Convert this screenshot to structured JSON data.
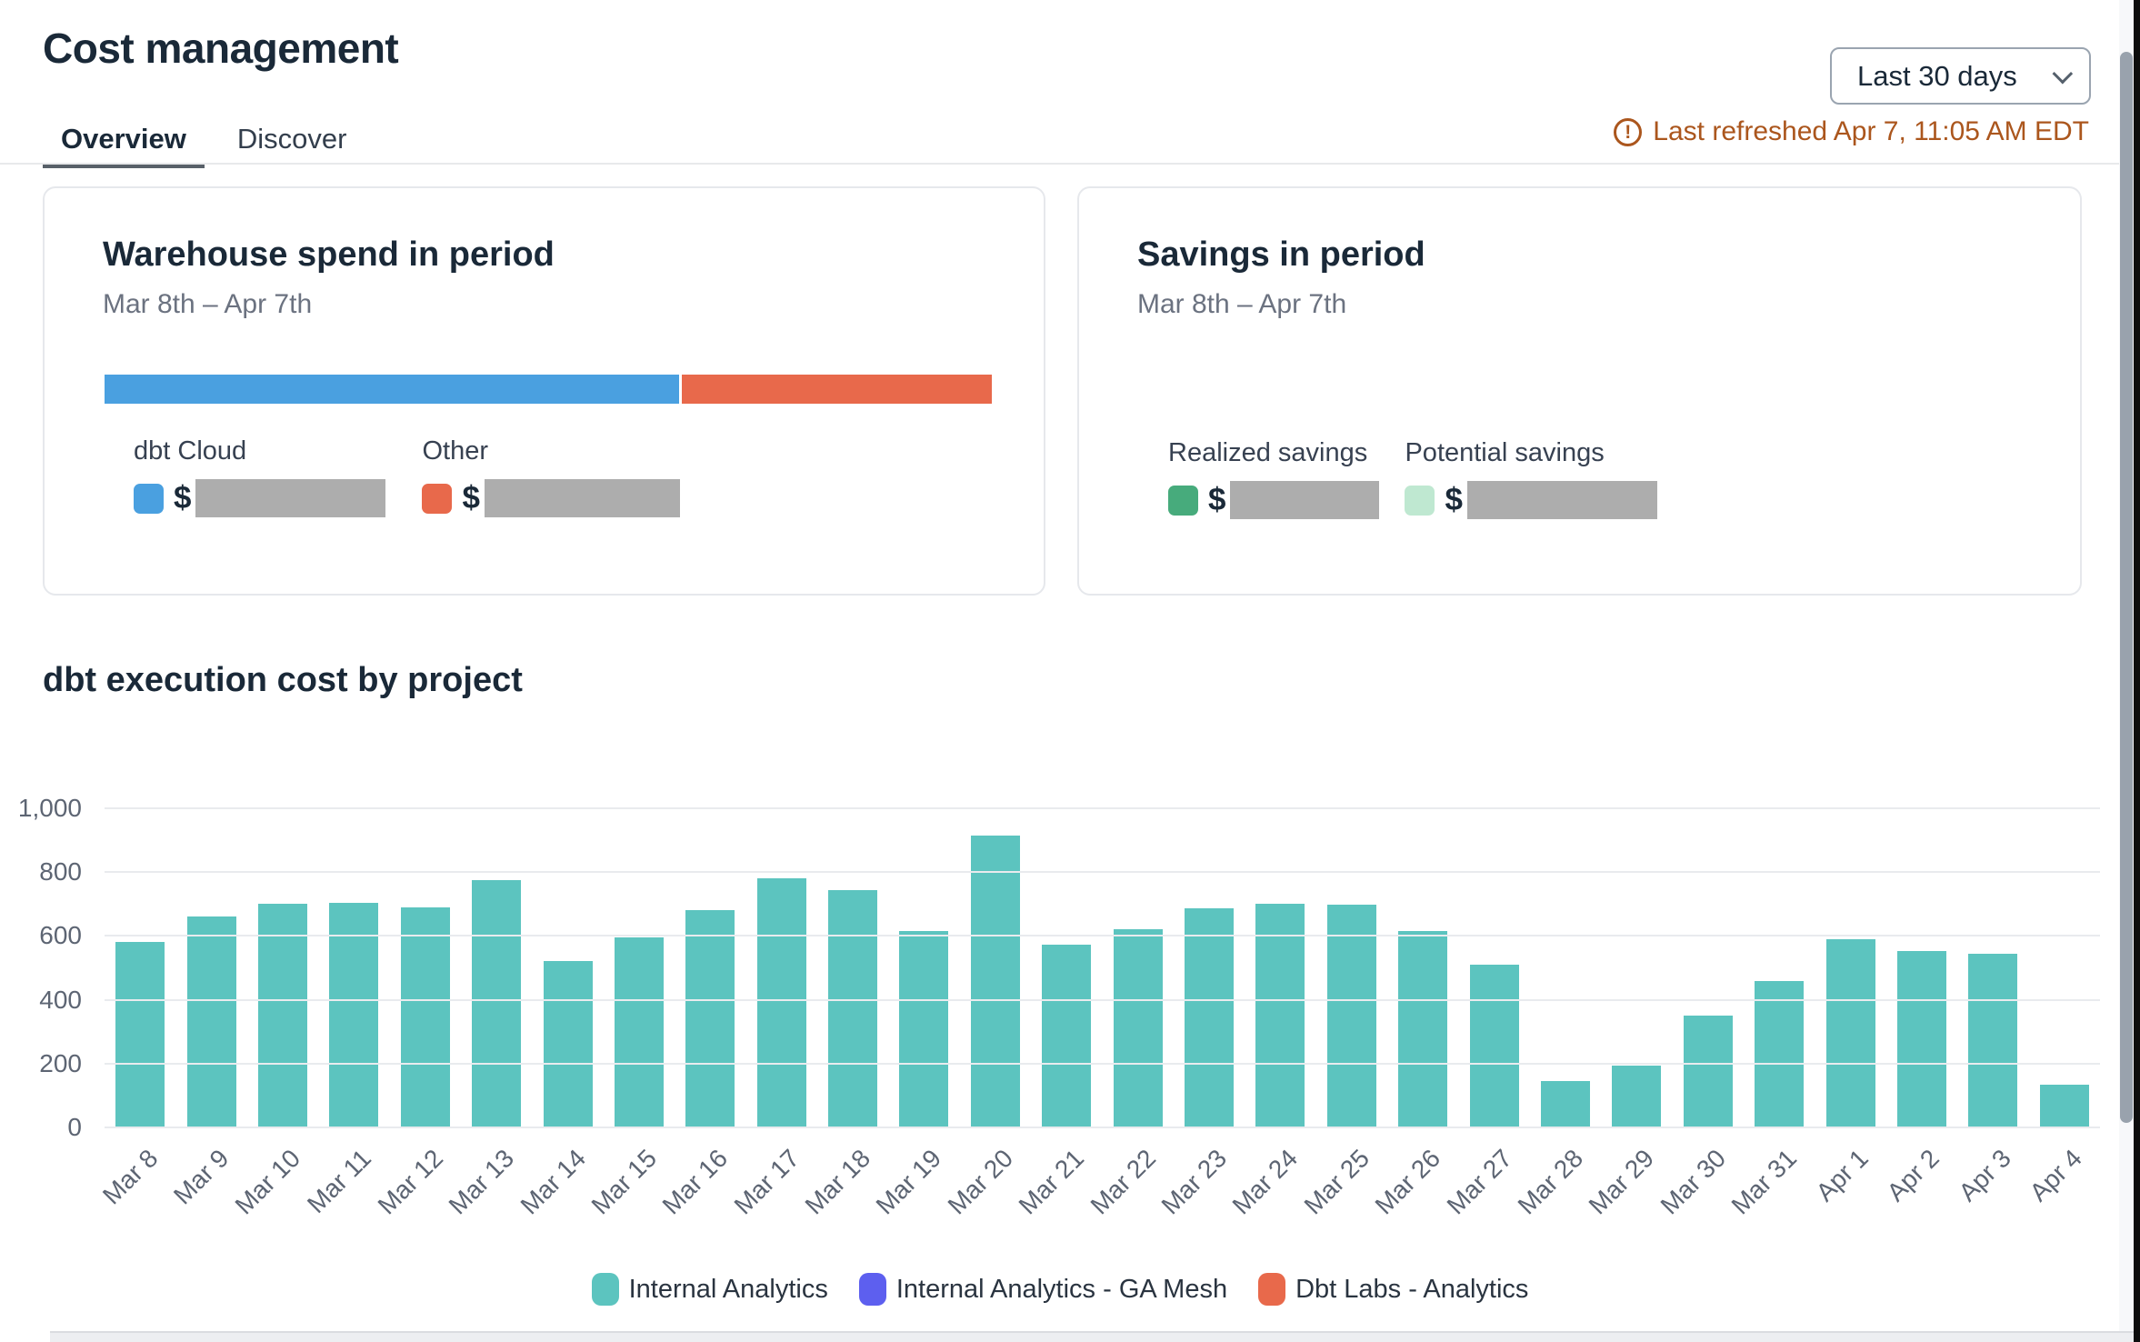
{
  "header": {
    "title": "Cost management",
    "active_tab": "Overview",
    "tabs": [
      {
        "label": "Overview"
      },
      {
        "label": "Discover"
      }
    ],
    "range_dropdown": {
      "value": "Last 30 days"
    },
    "refresh": {
      "text": "Last refreshed Apr 7, 11:05 AM EDT",
      "color": "#ab561d"
    }
  },
  "warehouse_card": {
    "title": "Warehouse spend in period",
    "period": "Mar 8th – Apr 7th",
    "bar_segments": [
      {
        "name": "dbt Cloud",
        "color": "#4aa0e0",
        "pct": 65
      },
      {
        "name": "Other",
        "color": "#e8694b",
        "pct": 35
      }
    ],
    "legend": [
      {
        "label": "dbt Cloud",
        "color": "#4aa0e0",
        "currency": "$",
        "value_redacted": true
      },
      {
        "label": "Other",
        "color": "#e8694b",
        "currency": "$",
        "value_redacted": true
      }
    ]
  },
  "savings_card": {
    "title": "Savings in period",
    "period": "Mar 8th – Apr 7th",
    "legend": [
      {
        "label": "Realized savings",
        "color": "#47ab7c",
        "currency": "$",
        "value_redacted": true
      },
      {
        "label": "Potential savings",
        "color": "#bfe8d1",
        "currency": "$",
        "value_redacted": true
      }
    ]
  },
  "chart_section": {
    "title": "dbt execution cost by project"
  },
  "chart_data": {
    "type": "bar",
    "title": "dbt execution cost by project",
    "categories": [
      "Mar 8",
      "Mar 9",
      "Mar 10",
      "Mar 11",
      "Mar 12",
      "Mar 13",
      "Mar 14",
      "Mar 15",
      "Mar 16",
      "Mar 17",
      "Mar 18",
      "Mar 19",
      "Mar 20",
      "Mar 21",
      "Mar 22",
      "Mar 23",
      "Mar 24",
      "Mar 25",
      "Mar 26",
      "Mar 27",
      "Mar 28",
      "Mar 29",
      "Mar 30",
      "Mar 31",
      "Apr 1",
      "Apr 2",
      "Apr 3",
      "Apr 4"
    ],
    "series": [
      {
        "name": "Internal Analytics",
        "color": "#5cc4bf",
        "values": [
          580,
          660,
          700,
          705,
          690,
          775,
          520,
          595,
          680,
          780,
          745,
          615,
          915,
          573,
          620,
          688,
          700,
          698,
          615,
          510,
          145,
          195,
          350,
          460,
          590,
          553,
          545,
          135
        ]
      }
    ],
    "legend": [
      {
        "label": "Internal Analytics",
        "color": "#5cc4bf"
      },
      {
        "label": "Internal Analytics - GA Mesh",
        "color": "#5d5fef"
      },
      {
        "label": "Dbt Labs - Analytics",
        "color": "#e8694b"
      }
    ],
    "xlabel": "",
    "ylabel": "",
    "ylim": [
      0,
      1000
    ],
    "yticks": [
      0,
      200,
      400,
      600,
      800,
      1000
    ],
    "ytick_labels": [
      "0",
      "200",
      "400",
      "600",
      "800",
      "1,000"
    ],
    "grid": true,
    "legend_position": "bottom"
  }
}
